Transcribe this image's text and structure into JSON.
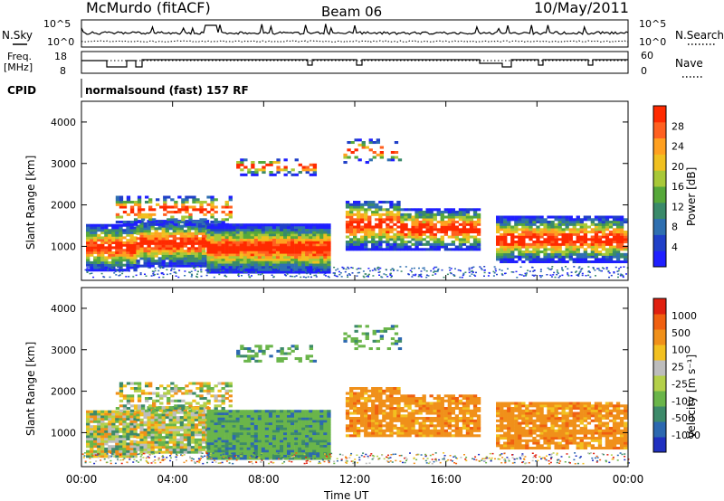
{
  "header": {
    "station": "McMurdo (fitACF)",
    "beam": "Beam 06",
    "date": "10/May/2011"
  },
  "left_labels": {
    "nsky": "N.Sky",
    "freq": "Freq.",
    "freq_unit": "[MHz]",
    "cpid": "CPID"
  },
  "right_labels": {
    "nsearch": "N.Search",
    "nave": "Nave"
  },
  "cpid_text": "normalsound (fast) 157 RF",
  "colors": {
    "power": [
      "#1f1fff",
      "#2040c8",
      "#2f6fb0",
      "#3a8a6a",
      "#56a83a",
      "#a8c838",
      "#f0c020",
      "#ffa020",
      "#ff6020",
      "#ff2a00"
    ],
    "velocity": [
      "#2030c0",
      "#2c68b0",
      "#3d8a6a",
      "#6ab54a",
      "#b4d04a",
      "#bdbdbd",
      "#f2c020",
      "#f0901a",
      "#f06010",
      "#e02010"
    ]
  },
  "chart_data": [
    {
      "type": "line",
      "name": "noise",
      "ylabels_left": [
        "10^5",
        "10^0"
      ],
      "ylabels_right": [
        "10^5",
        "10^0"
      ]
    },
    {
      "type": "line",
      "name": "frequency",
      "ylabels_left": [
        "18",
        "8"
      ],
      "ylabels_right": [
        "60",
        "0"
      ]
    },
    {
      "type": "heatmap",
      "name": "power",
      "ylabel": "Slant Range [km]",
      "yticks": [
        "4000",
        "3000",
        "2000",
        "1000"
      ],
      "ylim": [
        180,
        4500
      ],
      "colorbar_label": "Power [dB]",
      "colorbar_ticks": [
        "28",
        "24",
        "20",
        "16",
        "12",
        "8",
        "4"
      ]
    },
    {
      "type": "heatmap",
      "name": "velocity",
      "ylabel": "Slant Range [km]",
      "yticks": [
        "4000",
        "3000",
        "2000",
        "1000"
      ],
      "ylim": [
        180,
        4500
      ],
      "colorbar_label": "Velocity [m s⁻¹]",
      "colorbar_ticks": [
        "1000",
        "500",
        "100",
        "25",
        "-25",
        "-100",
        "-500",
        "-1000"
      ]
    }
  ],
  "xaxis": {
    "label": "Time UT",
    "ticks": [
      "00:00",
      "04:00",
      "08:00",
      "12:00",
      "16:00",
      "20:00",
      "00:00"
    ]
  }
}
